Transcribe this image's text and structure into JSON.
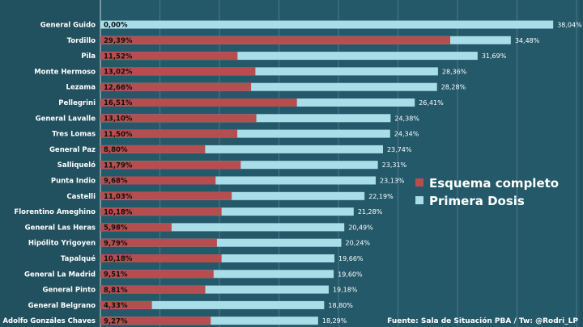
{
  "colors": {
    "background": "#21505f",
    "plot_background": "#24596a",
    "primera": "#a9dde8",
    "completo": "#b64e50",
    "gridline": "#5f8793"
  },
  "chart_data": {
    "type": "bar",
    "orientation": "horizontal",
    "overlay": true,
    "title": "",
    "xlabel": "",
    "ylabel": "",
    "xlim": [
      0,
      40
    ],
    "grid": true,
    "legend_position": "right",
    "categories": [
      "General Guido",
      "Tordillo",
      "Pila",
      "Monte Hermoso",
      "Lezama",
      "Pellegrini",
      "General Lavalle",
      "Tres Lomas",
      "General Paz",
      "Salliqueló",
      "Punta Indio",
      "Castelli",
      "Florentino Ameghino",
      "General Las Heras",
      "Hipólito Yrigoyen",
      "Tapalqué",
      "General La Madrid",
      "General Pinto",
      "General Belgrano",
      "Adolfo Gonzáles Chaves"
    ],
    "series": [
      {
        "name": "Esquema completo",
        "color_key": "completo",
        "values": [
          0.0,
          29.39,
          11.52,
          13.02,
          12.66,
          16.51,
          13.1,
          11.5,
          8.8,
          11.79,
          9.68,
          11.03,
          10.18,
          5.98,
          9.79,
          10.18,
          9.51,
          8.81,
          4.33,
          9.27
        ],
        "labels": [
          "0,00%",
          "29,39%",
          "11,52%",
          "13,02%",
          "12,66%",
          "16,51%",
          "13,10%",
          "11,50%",
          "8,80%",
          "11,79%",
          "9,68%",
          "11,03%",
          "10,18%",
          "5,98%",
          "9,79%",
          "10,18%",
          "9,51%",
          "8,81%",
          "4,33%",
          "9,27%"
        ]
      },
      {
        "name": "Primera Dosis",
        "color_key": "primera",
        "values": [
          38.04,
          34.48,
          31.69,
          28.36,
          28.28,
          26.41,
          24.38,
          24.34,
          23.74,
          23.31,
          23.13,
          22.19,
          21.28,
          20.49,
          20.24,
          19.66,
          19.6,
          19.18,
          18.8,
          18.29
        ],
        "labels": [
          "38,04%",
          "34,48%",
          "31,69%",
          "28,36%",
          "28,28%",
          "26,41%",
          "24,38%",
          "24,34%",
          "23,74%",
          "23,31%",
          "23,13%",
          "22,19%",
          "21,28%",
          "20,49%",
          "20,24%",
          "19,66%",
          "19,60%",
          "19,18%",
          "18,80%",
          "18,29%"
        ]
      }
    ],
    "annotations": [
      "Fuente: Sala de Situación PBA / Tw: @Rodri_LP"
    ]
  }
}
